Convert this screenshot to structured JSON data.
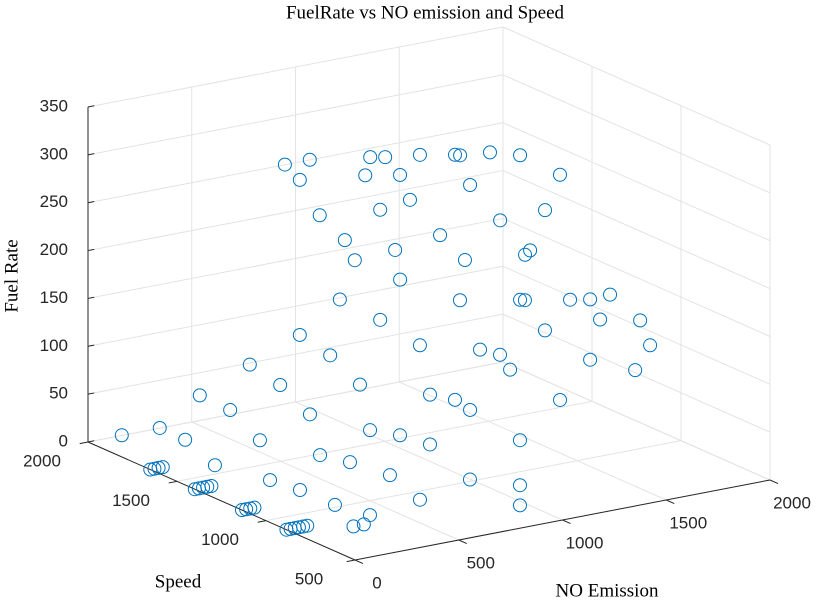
{
  "chart_data": {
    "type": "scatter3d",
    "title": "FuelRate vs NO emission and Speed",
    "xlabel": "NO Emission",
    "ylabel": "Speed",
    "zlabel": "Fuel Rate",
    "color": "#0072bd",
    "grid": true,
    "xlim": [
      0,
      2000
    ],
    "xticks": [
      0,
      500,
      1000,
      1500,
      2000
    ],
    "ylim": [
      500,
      2000
    ],
    "yticks": [
      500,
      1000,
      1500,
      2000
    ],
    "zlim": [
      0,
      350
    ],
    "zticks": [
      0,
      50,
      100,
      150,
      200,
      250,
      300,
      350
    ],
    "x": [
      77,
      260,
      453,
      694,
      935,
      1128,
      1200,
      1152,
      1031,
      935,
      863,
      983,
      125,
      342,
      583,
      824,
      1065,
      1161,
      1137,
      1065,
      993,
      1017,
      1089,
      97,
      314,
      555,
      796,
      1085,
      1278,
      1302,
      1182,
      1037,
      989,
      1085,
      1254,
      191,
      432,
      673,
      962,
      1203,
      1396,
      1420,
      1300,
      1155,
      1107,
      1251,
      1396,
      78,
      319,
      560,
      825,
      1042,
      1162,
      1187,
      1259,
      1331,
      75,
      340,
      533,
      726,
      919,
      1087,
      1208,
      115,
      356,
      597,
      838,
      1031,
      1176,
      1224,
      1176,
      1272,
      1417,
      1465,
      1393,
      838,
      838,
      0,
      20,
      40,
      60,
      0,
      20,
      40,
      60,
      80,
      0,
      20,
      40,
      60,
      0,
      20,
      40,
      60,
      80,
      100,
      250,
      300
    ],
    "y": [
      1900,
      1900,
      1900,
      1900,
      1900,
      1900,
      1900,
      1900,
      1900,
      1900,
      1900,
      1900,
      1600,
      1600,
      1600,
      1600,
      1600,
      1600,
      1600,
      1600,
      1600,
      1600,
      1600,
      1400,
      1400,
      1400,
      1400,
      1400,
      1400,
      1400,
      1400,
      1400,
      1400,
      1400,
      1400,
      1200,
      1200,
      1200,
      1200,
      1200,
      1200,
      1200,
      1200,
      1200,
      1200,
      1200,
      1200,
      900,
      900,
      900,
      900,
      900,
      900,
      900,
      900,
      900,
      700,
      700,
      700,
      700,
      700,
      700,
      700,
      550,
      550,
      550,
      550,
      550,
      550,
      550,
      550,
      550,
      550,
      550,
      550,
      550,
      550,
      1650,
      1650,
      1650,
      1650,
      1400,
      1400,
      1400,
      1400,
      1400,
      1135,
      1135,
      1135,
      1135,
      885,
      885,
      885,
      885,
      885,
      885,
      800,
      800
    ],
    "z": [
      12,
      12,
      38,
      60,
      81,
      110,
      148,
      171,
      202,
      243,
      262,
      262,
      30,
      52,
      68,
      89,
      116,
      154,
      186,
      231,
      270,
      288,
      285,
      21,
      38,
      55,
      76,
      105,
      144,
      185,
      216,
      259,
      287,
      304,
      297,
      18,
      34,
      50,
      75,
      112,
      156,
      202,
      243,
      286,
      319,
      316,
      307,
      37,
      56,
      74,
      100,
      138,
      190,
      241,
      280,
      314,
      38,
      58,
      82,
      110,
      144,
      178,
      205,
      38,
      44,
      55,
      86,
      120,
      156,
      196,
      219,
      220,
      187,
      159,
      136,
      39,
      18,
      0,
      0,
      0,
      0,
      0,
      0,
      0,
      0,
      0,
      0,
      0,
      0,
      0,
      0,
      0,
      0,
      0,
      0,
      0,
      0,
      0
    ]
  }
}
